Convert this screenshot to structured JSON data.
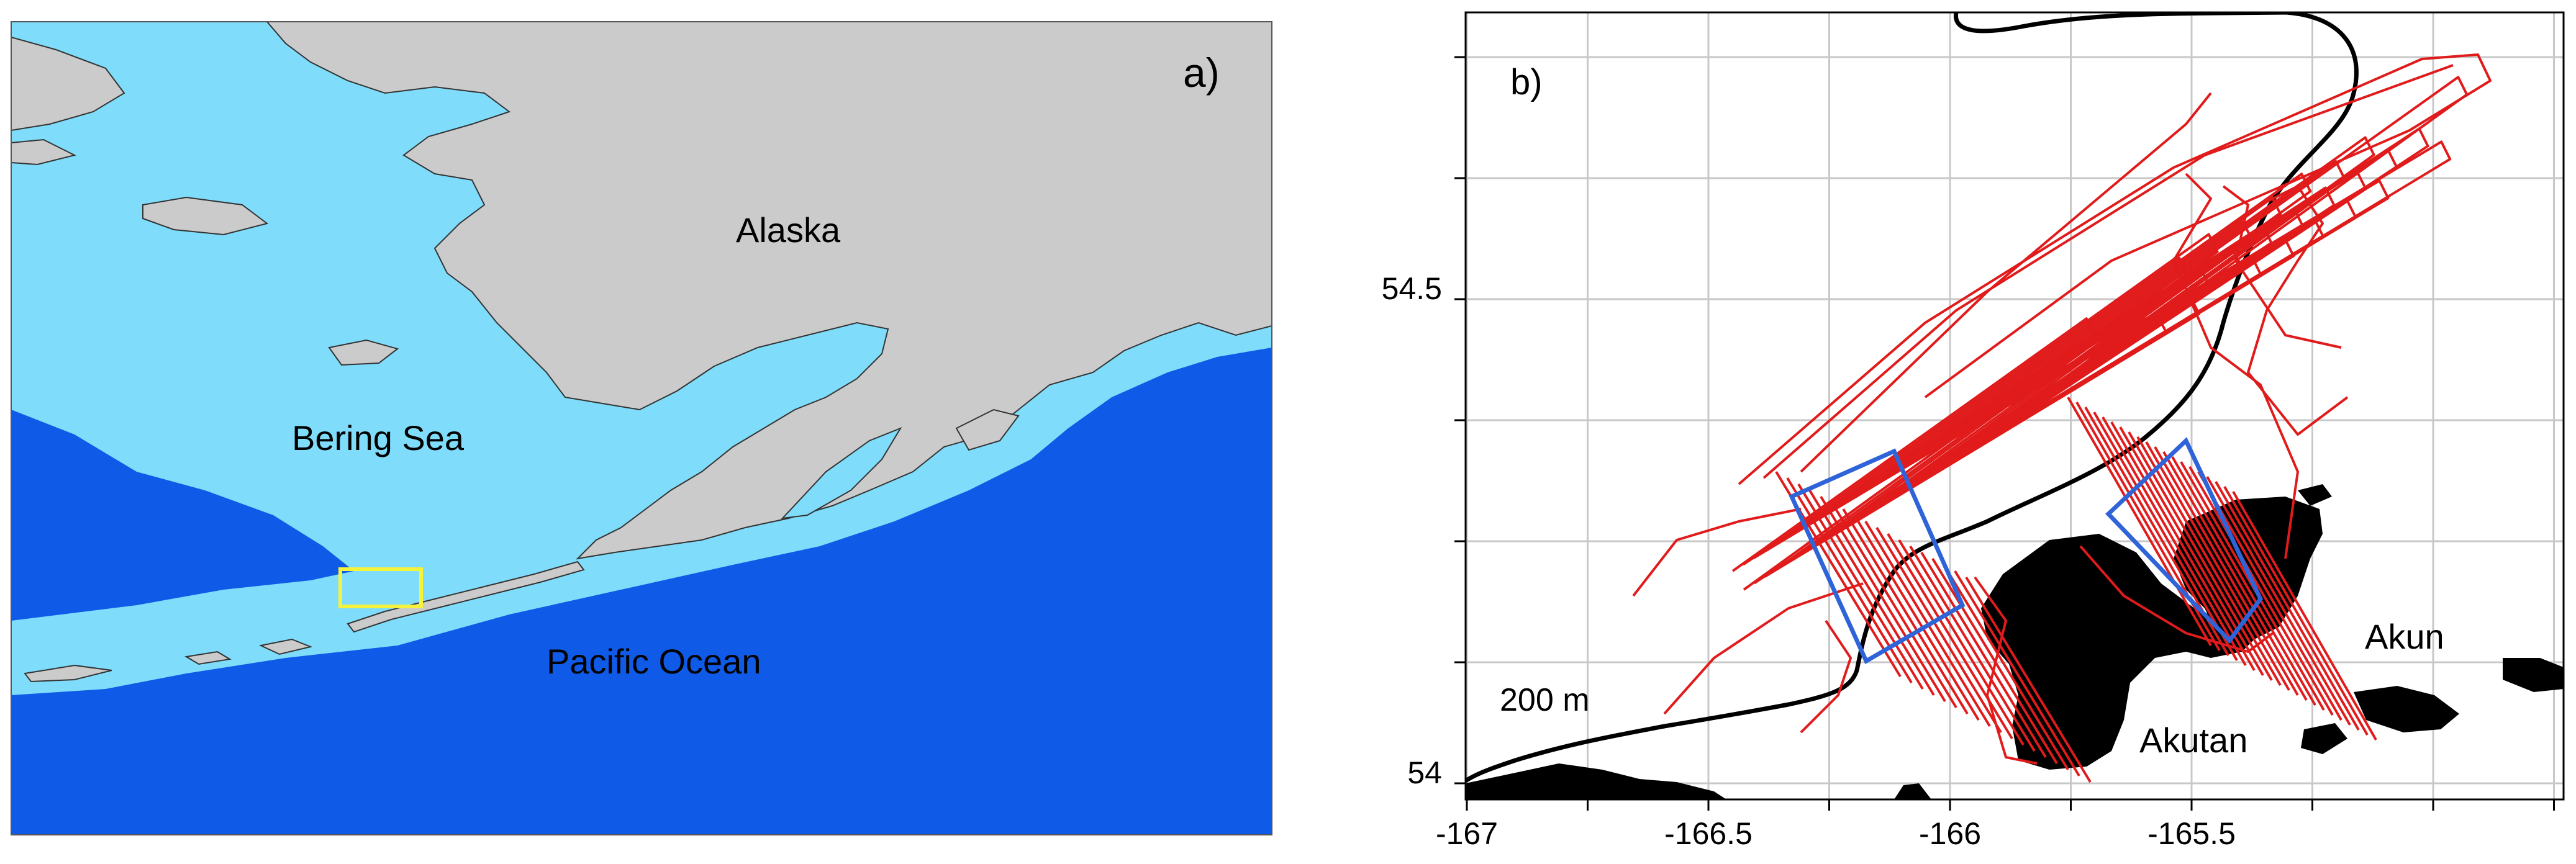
{
  "panel_a": {
    "label": "a)",
    "places": {
      "alaska": "Alaska",
      "bering_sea": "Bering Sea",
      "pacific_ocean": "Pacific Ocean"
    },
    "colors": {
      "land": "#cbcbcb",
      "shelf": "#7fdcfb",
      "deep_ocean": "#0f5ae6",
      "study_box": "#f4f23a"
    }
  },
  "panel_b": {
    "label": "b)",
    "isobath_label": "200 m",
    "islands": {
      "akun": "Akun",
      "akutan": "Akutan"
    },
    "x_ticks": [
      "-167",
      "-166.5",
      "-166",
      "-165.5"
    ],
    "y_ticks": [
      "54.5",
      "54"
    ],
    "x_range": [
      -167,
      -165.1
    ],
    "y_range": [
      53.97,
      54.8
    ],
    "grid": true,
    "colors": {
      "tracks": "#e11b1b",
      "boxes": "#2f63d8",
      "land": "#000000",
      "isobath": "#000000",
      "grid": "#c8c8c8"
    }
  }
}
